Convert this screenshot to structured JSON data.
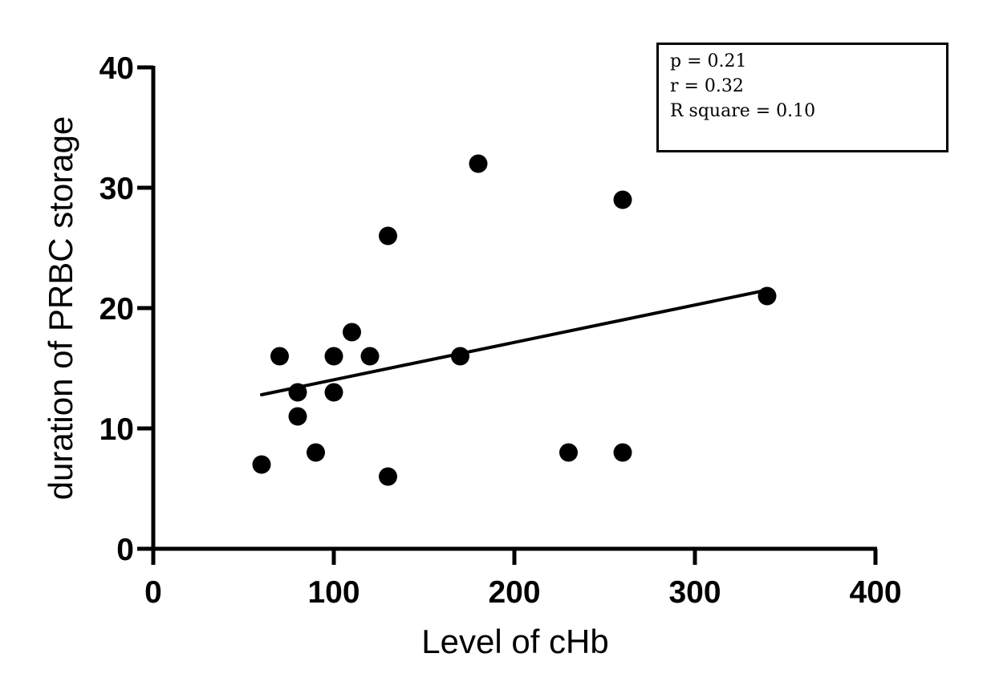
{
  "chart_data": {
    "type": "scatter",
    "title": "",
    "xlabel": "Level of cHb",
    "ylabel": "duration of PRBC storage",
    "xlim": [
      0,
      400
    ],
    "ylim": [
      0,
      40
    ],
    "xticks": [
      0,
      100,
      200,
      300,
      400
    ],
    "yticks": [
      0,
      10,
      20,
      30,
      40
    ],
    "x_tick_labels": [
      "0",
      "100",
      "200",
      "300",
      "400"
    ],
    "y_tick_labels": [
      "0",
      "10",
      "20",
      "30",
      "40"
    ],
    "grid": false,
    "points": [
      {
        "x": 60,
        "y": 7
      },
      {
        "x": 70,
        "y": 16
      },
      {
        "x": 80,
        "y": 13
      },
      {
        "x": 80,
        "y": 11
      },
      {
        "x": 90,
        "y": 8
      },
      {
        "x": 100,
        "y": 16
      },
      {
        "x": 100,
        "y": 13
      },
      {
        "x": 110,
        "y": 18
      },
      {
        "x": 120,
        "y": 16
      },
      {
        "x": 130,
        "y": 26
      },
      {
        "x": 130,
        "y": 6
      },
      {
        "x": 170,
        "y": 16
      },
      {
        "x": 180,
        "y": 32
      },
      {
        "x": 230,
        "y": 8
      },
      {
        "x": 260,
        "y": 29
      },
      {
        "x": 260,
        "y": 8
      },
      {
        "x": 340,
        "y": 21
      }
    ],
    "regression_line": {
      "x": [
        60,
        340
      ],
      "y": [
        12.8,
        21.5
      ]
    },
    "annotations": [
      "p = 0.21",
      "r = 0.32",
      "R square = 0.10"
    ],
    "colors": {
      "points": "#000000",
      "line": "#000000",
      "axes": "#000000"
    }
  }
}
